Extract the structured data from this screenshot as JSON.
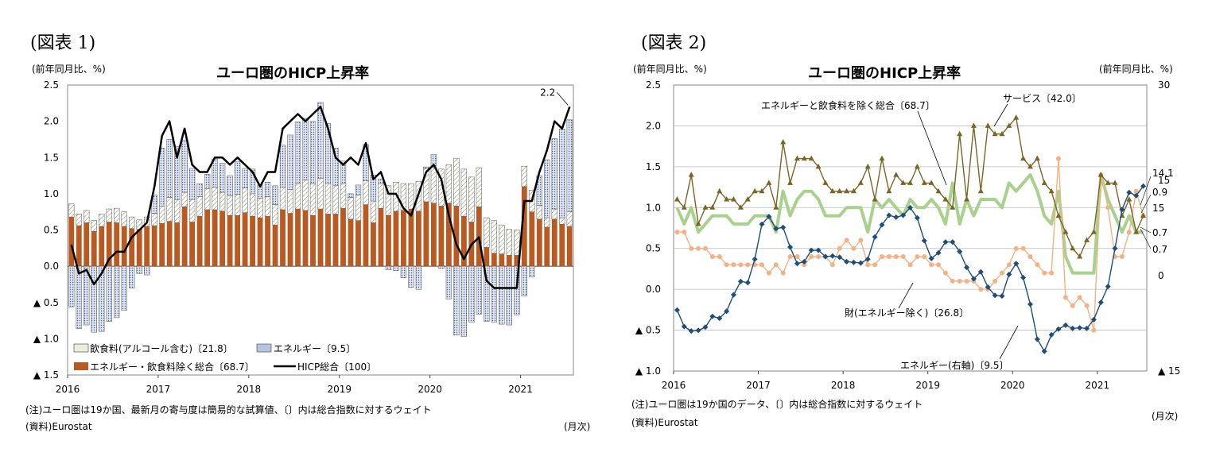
{
  "figure1": {
    "label": "(図表 1)",
    "unit": "(前年同月比、%)",
    "month_label": "(月次)",
    "note": "(注)ユーロ圏は19か国、最新月の寄与度は簡易的な試算値、〔〕内は総合指数に対するウェイト",
    "source": "(資料)Eurostat"
  },
  "figure2": {
    "label": "(図表 2)",
    "unit_left": "(前年同月比、%)",
    "unit_right": "(前年同月比、%)",
    "month_label": "(月次)",
    "note": "(注)ユーロ圏は19か国のデータ、〔〕内は総合指数に対するウェイト",
    "source": "(資料)Eurostat"
  },
  "chart_data": [
    {
      "type": "bar",
      "stacked": true,
      "title": "ユーロ圏のHICP上昇率",
      "ylabel": "(前年同月比、%)",
      "ylim": [
        -1.5,
        2.5
      ],
      "yticks": [
        2.5,
        2.0,
        1.5,
        1.0,
        0.5,
        0.0,
        -0.5,
        -1.0,
        -1.5
      ],
      "ytick_labels": [
        "2.5",
        "2.0",
        "1.5",
        "1.0",
        "0.5",
        "0.0",
        "▲ 0.5",
        "▲ 1.0",
        "▲ 1.5"
      ],
      "x_start": "2016-01",
      "xtick_labels": [
        "2016",
        "2017",
        "2018",
        "2019",
        "2020",
        "2021"
      ],
      "series": [
        {
          "name": "飲食料(アルコール含む)〔21.8〕",
          "color": "#e9efd9",
          "values": [
            0.18,
            0.16,
            0.17,
            0.15,
            0.17,
            0.18,
            0.2,
            0.2,
            0.16,
            0.13,
            0.13,
            0.17,
            0.24,
            0.33,
            0.32,
            0.2,
            0.31,
            0.27,
            0.29,
            0.31,
            0.26,
            0.27,
            0.29,
            0.34,
            0.31,
            0.27,
            0.27,
            0.28,
            0.31,
            0.33,
            0.35,
            0.42,
            0.44,
            0.42,
            0.42,
            0.39,
            0.34,
            0.3,
            0.35,
            0.33,
            0.3,
            0.34,
            0.41,
            0.4,
            0.37,
            0.35,
            0.41,
            0.46,
            0.49,
            0.51,
            0.53,
            0.66,
            0.65,
            0.62,
            0.54,
            0.41,
            0.45,
            0.4,
            0.36,
            0.35,
            0.28,
            0.3,
            0.19,
            0.13,
            0.14,
            0.09,
            0.2
          ]
        },
        {
          "name": "エネルギー〔9.5〕",
          "color": "#b7c4e0",
          "values": [
            -0.56,
            -0.86,
            -0.81,
            -0.91,
            -0.9,
            -0.76,
            -0.71,
            -0.61,
            -0.3,
            -0.1,
            -0.12,
            0.25,
            0.8,
            0.8,
            0.73,
            0.72,
            0.43,
            0.18,
            0.2,
            0.39,
            0.4,
            0.28,
            0.45,
            0.27,
            0.34,
            0.18,
            0.2,
            0.26,
            0.58,
            0.75,
            0.85,
            0.85,
            0.86,
            1.05,
            0.83,
            0.52,
            0.31,
            0.05,
            0.14,
            0.5,
            0.36,
            0.06,
            -0.05,
            -0.06,
            -0.16,
            -0.29,
            -0.32,
            0.02,
            0.18,
            -0.03,
            -0.45,
            -0.95,
            -0.97,
            -0.77,
            -0.66,
            -0.76,
            -0.77,
            -0.8,
            -0.81,
            -0.67,
            -0.41,
            -0.15,
            0.41,
            0.8,
            0.97,
            1.22,
            1.27
          ]
        },
        {
          "name": "エネルギー・飲食料除く総合〔68.7〕",
          "color": "#b85a22",
          "values": [
            0.68,
            0.56,
            0.6,
            0.48,
            0.55,
            0.61,
            0.6,
            0.55,
            0.52,
            0.51,
            0.55,
            0.56,
            0.59,
            0.62,
            0.6,
            0.82,
            0.61,
            0.69,
            0.78,
            0.78,
            0.76,
            0.7,
            0.7,
            0.74,
            0.69,
            0.67,
            0.69,
            0.57,
            0.78,
            0.73,
            0.79,
            0.77,
            0.7,
            0.79,
            0.72,
            0.72,
            0.8,
            0.65,
            0.63,
            0.85,
            0.6,
            0.8,
            0.7,
            0.76,
            0.77,
            0.79,
            0.76,
            0.89,
            0.87,
            0.83,
            0.87,
            0.83,
            0.69,
            0.61,
            0.82,
            0.26,
            0.18,
            0.17,
            0.15,
            0.15,
            1.1,
            0.75,
            0.65,
            0.54,
            0.65,
            0.58,
            0.55
          ]
        },
        {
          "name": "HICP総合〔100〕",
          "color": "#000000",
          "kind": "line",
          "values": [
            0.3,
            -0.1,
            -0.05,
            -0.25,
            -0.1,
            0.1,
            0.2,
            0.2,
            0.4,
            0.5,
            0.6,
            1.1,
            1.8,
            2.0,
            1.5,
            1.9,
            1.4,
            1.3,
            1.3,
            1.5,
            1.5,
            1.4,
            1.5,
            1.4,
            1.3,
            1.1,
            1.3,
            1.3,
            1.9,
            2.0,
            2.1,
            2.0,
            2.1,
            2.2,
            1.9,
            1.5,
            1.4,
            1.5,
            1.4,
            1.7,
            1.2,
            1.3,
            1.0,
            1.0,
            0.8,
            0.7,
            1.0,
            1.3,
            1.4,
            1.2,
            0.7,
            0.3,
            0.1,
            0.3,
            0.4,
            -0.2,
            -0.3,
            -0.3,
            -0.3,
            -0.3,
            0.9,
            0.9,
            1.3,
            1.6,
            2.0,
            1.9,
            2.2
          ]
        }
      ],
      "annotations": [
        {
          "text": "2.2",
          "month_index": 66,
          "value": 2.2
        }
      ]
    },
    {
      "type": "line",
      "title": "ユーロ圏のHICP上昇率",
      "ylabel_left": "(前年同月比、%)",
      "ylabel_right": "(前年同月比、%)",
      "ylim_left": [
        -1.0,
        2.5
      ],
      "ylim_right": [
        -15,
        30
      ],
      "yticks_left": [
        2.5,
        2.0,
        1.5,
        1.0,
        0.5,
        0.0,
        -0.5,
        -1.0
      ],
      "ytick_labels_left": [
        "2.5",
        "2.0",
        "1.5",
        "1.0",
        "0.5",
        "0.0",
        "▲ 0.5",
        "▲ 1.0"
      ],
      "yticks_right": [
        30,
        15,
        0,
        -15
      ],
      "ytick_labels_right": [
        "30",
        "15",
        "0",
        "▲ 15"
      ],
      "x_start": "2016-01",
      "xtick_labels": [
        "2016",
        "2017",
        "2018",
        "2019",
        "2020",
        "2021"
      ],
      "series": [
        {
          "name": "サービス〔42.0〕",
          "color": "#7a6526",
          "axis": "left",
          "marker": "triangle",
          "values": [
            1.1,
            1.0,
            1.4,
            0.8,
            1.0,
            1.0,
            1.2,
            1.1,
            1.1,
            1.0,
            1.1,
            1.2,
            1.2,
            1.3,
            1.0,
            1.8,
            1.3,
            1.6,
            1.6,
            1.6,
            1.5,
            1.3,
            1.2,
            1.2,
            1.2,
            1.2,
            1.3,
            1.5,
            1.1,
            1.6,
            1.2,
            1.4,
            1.3,
            1.3,
            1.5,
            1.3,
            1.3,
            1.2,
            1.1,
            1.0,
            1.9,
            1.1,
            2.0,
            1.2,
            2.0,
            1.9,
            1.9,
            2.0,
            2.1,
            1.6,
            1.5,
            1.6,
            1.3,
            1.2,
            0.9,
            0.7,
            0.5,
            0.4,
            0.6,
            0.7,
            1.4,
            1.3,
            1.3,
            0.9,
            1.1,
            0.7,
            0.9
          ]
        },
        {
          "name": "エネルギーと飲食料を除く総合〔68.7〕",
          "color": "#a9d18e",
          "axis": "left",
          "marker": "none",
          "values": [
            1.0,
            0.8,
            1.0,
            0.7,
            0.8,
            0.9,
            0.9,
            0.9,
            0.8,
            0.8,
            0.8,
            0.9,
            0.9,
            0.9,
            0.7,
            1.2,
            0.9,
            1.1,
            1.2,
            1.2,
            1.1,
            0.9,
            0.9,
            0.9,
            1.0,
            1.0,
            1.0,
            0.7,
            1.1,
            1.0,
            1.1,
            1.0,
            0.9,
            1.1,
            1.0,
            1.0,
            1.1,
            1.0,
            0.8,
            1.3,
            0.8,
            1.1,
            0.9,
            1.1,
            1.1,
            1.1,
            1.0,
            1.3,
            1.2,
            1.3,
            1.4,
            1.2,
            0.9,
            0.8,
            1.2,
            0.4,
            0.2,
            0.2,
            0.2,
            0.2,
            1.4,
            1.1,
            0.9,
            0.7,
            0.9,
            0.7,
            0.7
          ]
        },
        {
          "name": "財(エネルギー除く)〔26.8〕",
          "color": "#f4b183",
          "axis": "left",
          "marker": "circle",
          "values": [
            0.7,
            0.7,
            0.5,
            0.5,
            0.5,
            0.4,
            0.4,
            0.3,
            0.3,
            0.3,
            0.3,
            0.3,
            0.3,
            0.2,
            0.3,
            0.2,
            0.4,
            0.4,
            0.3,
            0.4,
            0.4,
            0.4,
            0.3,
            0.5,
            0.6,
            0.5,
            0.6,
            0.3,
            0.3,
            0.4,
            0.4,
            0.4,
            0.4,
            0.3,
            0.4,
            0.4,
            0.3,
            0.3,
            0.2,
            0.1,
            0.1,
            0.1,
            0.1,
            0.0,
            0.0,
            0.1,
            0.2,
            0.3,
            0.5,
            0.5,
            0.4,
            0.3,
            0.2,
            0.2,
            1.6,
            -0.1,
            -0.2,
            -0.1,
            -0.2,
            -0.5,
            1.4,
            1.0,
            0.4,
            0.4,
            0.7,
            1.2,
            0.9
          ]
        },
        {
          "name": "エネルギー(右軸)〔9.5〕",
          "color": "#1f4e79",
          "axis": "right",
          "marker": "diamond",
          "values": [
            -5.4,
            -8.0,
            -8.7,
            -8.6,
            -8.1,
            -6.4,
            -6.7,
            -5.6,
            -3.0,
            -0.9,
            -1.1,
            2.6,
            8.1,
            9.3,
            7.4,
            7.6,
            4.5,
            1.9,
            2.2,
            4.0,
            4.0,
            3.0,
            3.1,
            2.9,
            2.2,
            2.1,
            2.0,
            2.6,
            6.1,
            8.0,
            9.5,
            9.2,
            9.5,
            10.7,
            9.1,
            5.5,
            2.7,
            3.6,
            5.3,
            5.3,
            3.8,
            1.3,
            -0.5,
            0.6,
            -1.8,
            -3.1,
            -3.2,
            0.2,
            1.9,
            -0.3,
            -4.5,
            -10.0,
            -11.9,
            -9.3,
            -8.4,
            -7.8,
            -8.3,
            -8.2,
            -8.3,
            -6.9,
            -4.2,
            -1.7,
            4.3,
            10.4,
            13.1,
            12.6,
            14.1
          ]
        }
      ],
      "right_end_labels": [
        "14.1",
        "0.9",
        "15",
        "0.7",
        "0.7"
      ]
    }
  ]
}
